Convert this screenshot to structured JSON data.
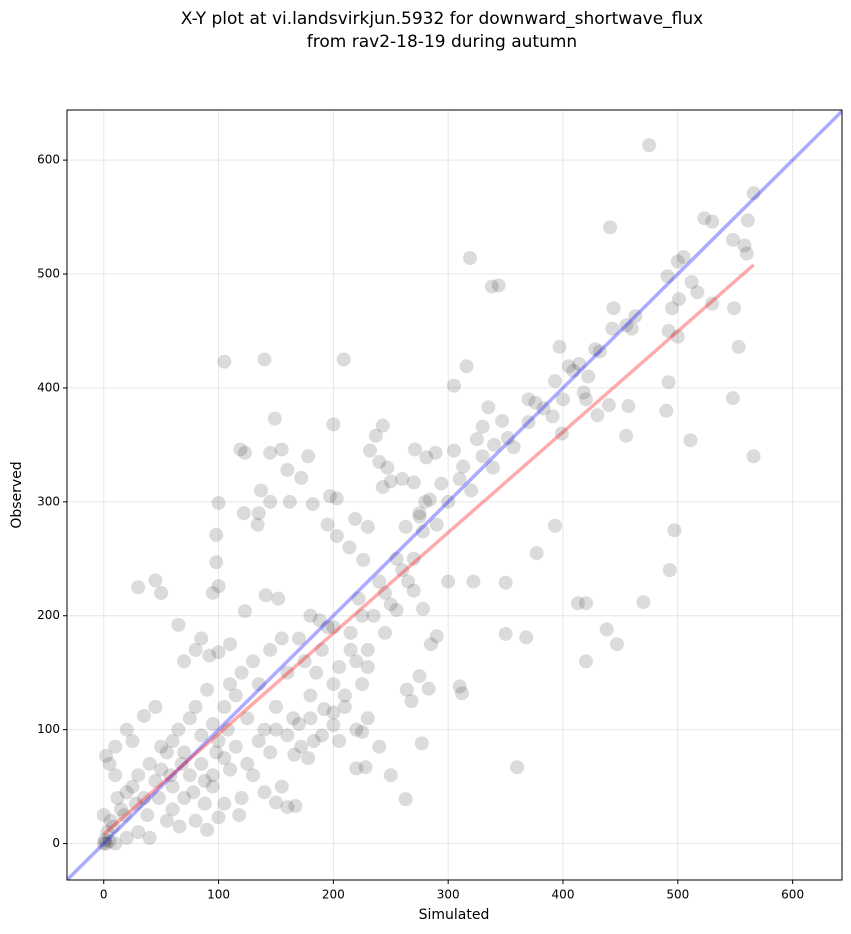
{
  "chart_data": {
    "type": "scatter",
    "title": [
      "X-Y plot at vi.landsvirkjun.5932 for downward_shortwave_flux",
      "from rav2-18-19 during autumn"
    ],
    "x_label": "Simulated",
    "y_label": "Observed",
    "xlim": [
      -32,
      643
    ],
    "ylim": [
      -32,
      644
    ],
    "xticks": [
      0,
      100,
      200,
      300,
      400,
      500,
      600
    ],
    "yticks": [
      0,
      100,
      200,
      300,
      400,
      500,
      600
    ],
    "grid": true,
    "series": [
      {
        "color": "#000000",
        "x": [
          475,
          441,
          566,
          561,
          548,
          523,
          530,
          505,
          500,
          491,
          512,
          517,
          560,
          558,
          501,
          530,
          495,
          549,
          553,
          492,
          500,
          463,
          455,
          460,
          444,
          443,
          428,
          432,
          397,
          405,
          409,
          414,
          393,
          422,
          418,
          430,
          420,
          400,
          376,
          383,
          391,
          399,
          457,
          455,
          440,
          490,
          492,
          511,
          548,
          566,
          497,
          493,
          370,
          347,
          335,
          325,
          316,
          319,
          338,
          344,
          313,
          305,
          330,
          339,
          352,
          370,
          357,
          305,
          289,
          271,
          281,
          237,
          240,
          247,
          243,
          232,
          200,
          209,
          105,
          140,
          149,
          119,
          123,
          155,
          160,
          172,
          145,
          162,
          197,
          203,
          178,
          250,
          260,
          243,
          270,
          284,
          294,
          263,
          275,
          278,
          230,
          219,
          226,
          203,
          214,
          195,
          182,
          137,
          135,
          122,
          134,
          145,
          100,
          98,
          98,
          100,
          95,
          123,
          45,
          30,
          50,
          141,
          152,
          180,
          188,
          200,
          222,
          225,
          230,
          215,
          245,
          255,
          270,
          278,
          300,
          310,
          312,
          322,
          350,
          368,
          350,
          377,
          393,
          413,
          420,
          420,
          438,
          447,
          470,
          360,
          263,
          283,
          275,
          285,
          290,
          268,
          264,
          277,
          240,
          220,
          228,
          250,
          225,
          205,
          200,
          192,
          183,
          178,
          172,
          166,
          155,
          150,
          160,
          167,
          140,
          130,
          120,
          118,
          105,
          95,
          88,
          80,
          90,
          100,
          66,
          60,
          55,
          40,
          30,
          20,
          10,
          5,
          2,
          0,
          1,
          3,
          6,
          0,
          2,
          5,
          10,
          20,
          15,
          25,
          30,
          35,
          40,
          45,
          50,
          55,
          60,
          65,
          70,
          75,
          80,
          85,
          90,
          95,
          100,
          105,
          110,
          115,
          120,
          125,
          130,
          135,
          140,
          145,
          150,
          155,
          160,
          165,
          170,
          175,
          180,
          185,
          190,
          195,
          200,
          205,
          210,
          215,
          220,
          225,
          230,
          235,
          240,
          245,
          250,
          255,
          260,
          265,
          270,
          275,
          280,
          290,
          300,
          310,
          320,
          330,
          340,
          65,
          70,
          80,
          85,
          92,
          100,
          110,
          20,
          25,
          35,
          10,
          45,
          50,
          60,
          70,
          75,
          85,
          95,
          105,
          110,
          115,
          125,
          135,
          145,
          150,
          160,
          170,
          180,
          190,
          200,
          210,
          220,
          230,
          12,
          8,
          18,
          28,
          38,
          48,
          58,
          68,
          78,
          88,
          98,
          108
        ],
        "y": [
          613,
          541,
          571,
          547,
          530,
          549,
          546,
          515,
          511,
          498,
          493,
          484,
          518,
          525,
          478,
          474,
          470,
          470,
          436,
          450,
          445,
          463,
          455,
          452,
          470,
          452,
          434,
          432,
          436,
          419,
          415,
          421,
          406,
          410,
          396,
          376,
          390,
          390,
          387,
          382,
          375,
          360,
          384,
          358,
          385,
          380,
          405,
          354,
          391,
          340,
          275,
          240,
          390,
          371,
          383,
          355,
          419,
          514,
          489,
          490,
          331,
          402,
          366,
          330,
          356,
          370,
          348,
          345,
          343,
          346,
          339,
          358,
          335,
          330,
          367,
          345,
          368,
          425,
          423,
          425,
          373,
          346,
          343,
          346,
          328,
          321,
          343,
          300,
          305,
          303,
          340,
          318,
          320,
          313,
          317,
          302,
          316,
          278,
          287,
          274,
          278,
          285,
          249,
          270,
          260,
          280,
          298,
          310,
          290,
          290,
          280,
          300,
          299,
          271,
          247,
          226,
          220,
          204,
          231,
          225,
          220,
          218,
          215,
          200,
          196,
          190,
          215,
          200,
          170,
          170,
          185,
          205,
          222,
          206,
          230,
          138,
          132,
          230,
          184,
          181,
          229,
          255,
          279,
          211,
          211,
          160,
          188,
          175,
          212,
          67,
          39,
          136,
          147,
          175,
          182,
          125,
          135,
          88,
          85,
          66,
          67,
          60,
          98,
          90,
          104,
          118,
          90,
          75,
          85,
          78,
          50,
          36,
          32,
          33,
          45,
          60,
          40,
          25,
          35,
          50,
          35,
          20,
          12,
          23,
          15,
          30,
          20,
          5,
          10,
          5,
          0,
          2,
          0,
          0,
          3,
          10,
          20,
          25,
          77,
          70,
          60,
          45,
          30,
          50,
          60,
          40,
          70,
          55,
          65,
          80,
          90,
          100,
          80,
          110,
          120,
          95,
          135,
          105,
          90,
          120,
          140,
          130,
          150,
          110,
          160,
          140,
          100,
          170,
          120,
          180,
          150,
          110,
          180,
          160,
          130,
          150,
          170,
          190,
          140,
          155,
          120,
          185,
          160,
          140,
          155,
          200,
          230,
          220,
          210,
          250,
          240,
          230,
          250,
          290,
          300,
          280,
          300,
          320,
          310,
          340,
          350,
          192,
          160,
          170,
          180,
          165,
          168,
          175,
          100,
          90,
          112,
          85,
          120,
          85,
          50,
          40,
          60,
          70,
          60,
          75,
          65,
          85,
          70,
          90,
          80,
          100,
          95,
          105,
          110,
          95,
          115,
          130,
          100,
          110,
          40,
          15,
          25,
          35,
          25,
          40,
          60,
          70,
          45,
          55,
          80,
          100
        ]
      }
    ],
    "lines": [
      {
        "color": "#0000ff",
        "x": [
          -32,
          643
        ],
        "y": [
          -32,
          643
        ]
      },
      {
        "color": "#ff0000",
        "x": [
          0,
          566
        ],
        "y": [
          8,
          508
        ]
      }
    ]
  }
}
